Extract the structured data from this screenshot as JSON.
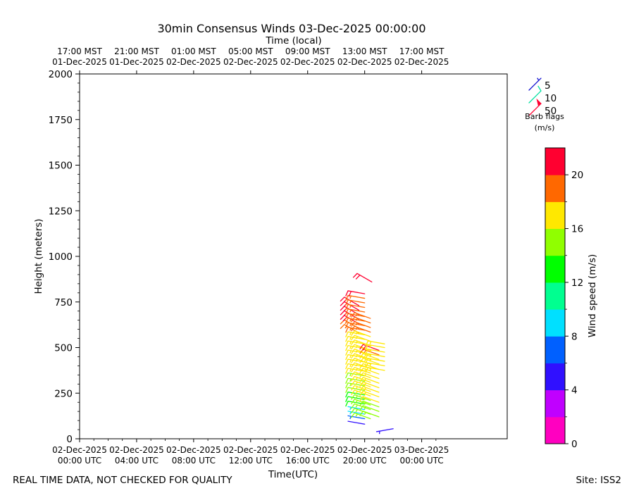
{
  "chart_data": {
    "type": "wind-barb",
    "title": "30min Consensus Winds 03-Dec-2025 00:00:00",
    "top_axis_label": "Time (local)",
    "xlabel": "Time(UTC)",
    "ylabel": "Height (meters)",
    "x_range_hours": [
      0,
      30
    ],
    "ylim": [
      0,
      2000
    ],
    "x_ticks": [
      {
        "hour": 0,
        "line1": "02-Dec-2025",
        "line2": "00:00 UTC"
      },
      {
        "hour": 4,
        "line1": "02-Dec-2025",
        "line2": "04:00 UTC"
      },
      {
        "hour": 8,
        "line1": "02-Dec-2025",
        "line2": "08:00 UTC"
      },
      {
        "hour": 12,
        "line1": "02-Dec-2025",
        "line2": "12:00 UTC"
      },
      {
        "hour": 16,
        "line1": "02-Dec-2025",
        "line2": "16:00 UTC"
      },
      {
        "hour": 20,
        "line1": "02-Dec-2025",
        "line2": "20:00 UTC"
      },
      {
        "hour": 24,
        "line1": "03-Dec-2025",
        "line2": "00:00 UTC"
      }
    ],
    "top_ticks": [
      {
        "hour": 0,
        "line1": "17:00 MST",
        "line2": "01-Dec-2025"
      },
      {
        "hour": 4,
        "line1": "21:00 MST",
        "line2": "01-Dec-2025"
      },
      {
        "hour": 8,
        "line1": "01:00 MST",
        "line2": "02-Dec-2025"
      },
      {
        "hour": 12,
        "line1": "05:00 MST",
        "line2": "02-Dec-2025"
      },
      {
        "hour": 16,
        "line1": "09:00 MST",
        "line2": "02-Dec-2025"
      },
      {
        "hour": 20,
        "line1": "13:00 MST",
        "line2": "02-Dec-2025"
      },
      {
        "hour": 24,
        "line1": "17:00 MST",
        "line2": "02-Dec-2025"
      }
    ],
    "y_ticks": [
      0,
      250,
      500,
      750,
      1000,
      1250,
      1500,
      1750,
      2000
    ],
    "barb_legend": {
      "entries": [
        {
          "value": "5",
          "color": "#1010d0"
        },
        {
          "value": "10",
          "color": "#00e0a0"
        },
        {
          "value": "50",
          "color": "#ff0030"
        }
      ],
      "title_line1": "Barb flags",
      "title_line2": "(m/s)"
    },
    "colorbar": {
      "label": "Wind speed (m/s)",
      "min": 0,
      "max": 22,
      "tick_values": [
        0,
        4,
        8,
        12,
        16,
        20
      ],
      "colors": [
        "#ff00c0",
        "#c000ff",
        "#3010ff",
        "#0060ff",
        "#00e0ff",
        "#00ff90",
        "#00ff00",
        "#90ff00",
        "#ffe800",
        "#ff6800",
        "#ff0030"
      ]
    },
    "series": [
      {
        "name": "column-a",
        "hour": 19.6,
        "direction_deg": 300,
        "heights": [
          580,
          605,
          630,
          655,
          680,
          705,
          730
        ],
        "speeds": [
          19,
          19,
          20,
          20,
          21,
          21,
          21
        ]
      },
      {
        "name": "column-b",
        "hour": 20.0,
        "direction_deg": 280,
        "heights": [
          80,
          110,
          135,
          160,
          190,
          215,
          240,
          265,
          290,
          315,
          345,
          370,
          395,
          420,
          445,
          470,
          495,
          520,
          545,
          570,
          595,
          620,
          645,
          670,
          695,
          720,
          745,
          770,
          795
        ],
        "speeds": [
          4,
          6,
          8,
          9,
          13,
          13,
          12,
          14,
          15,
          15,
          15,
          16,
          16,
          16,
          17,
          17,
          17,
          17,
          17,
          17,
          18,
          18,
          18,
          18,
          18,
          19,
          19,
          19,
          21
        ]
      },
      {
        "name": "column-c",
        "hour": 20.4,
        "direction_deg": 290,
        "heights": [
          110,
          135,
          160,
          185,
          210,
          235,
          260,
          285,
          310,
          335,
          360,
          385,
          410,
          435,
          460,
          485,
          510,
          535,
          560,
          585,
          610,
          635,
          660
        ],
        "speeds": [
          15,
          15,
          15,
          15,
          15,
          16,
          16,
          17,
          17,
          17,
          17,
          17,
          17,
          17,
          17,
          17,
          17,
          17,
          17,
          18,
          18,
          18,
          18
        ]
      },
      {
        "name": "column-d",
        "hour": 20.5,
        "direction_deg": 300,
        "heights": [
          860
        ],
        "speeds": [
          21
        ]
      },
      {
        "name": "column-e",
        "hour": 21.0,
        "direction_deg": 290,
        "heights": [
          120,
          150,
          175,
          200,
          230,
          255,
          280,
          305,
          330,
          355,
          380,
          410,
          435,
          460,
          485
        ],
        "speeds": [
          15,
          15,
          15,
          16,
          16,
          17,
          17,
          17,
          17,
          17,
          17,
          17,
          17,
          18,
          20
        ]
      },
      {
        "name": "column-f",
        "hour": 21.4,
        "direction_deg": 280,
        "heights": [
          375,
          400,
          425,
          450,
          475,
          500,
          520
        ],
        "speeds": [
          16,
          17,
          17,
          17,
          17,
          17,
          17
        ]
      },
      {
        "name": "column-g",
        "hour": 22.0,
        "direction_deg": 260,
        "heights": [
          55
        ],
        "speeds": [
          5
        ]
      }
    ]
  },
  "footer": {
    "disclaimer": "REAL TIME DATA, NOT CHECKED FOR QUALITY",
    "site": "Site: ISS2"
  }
}
